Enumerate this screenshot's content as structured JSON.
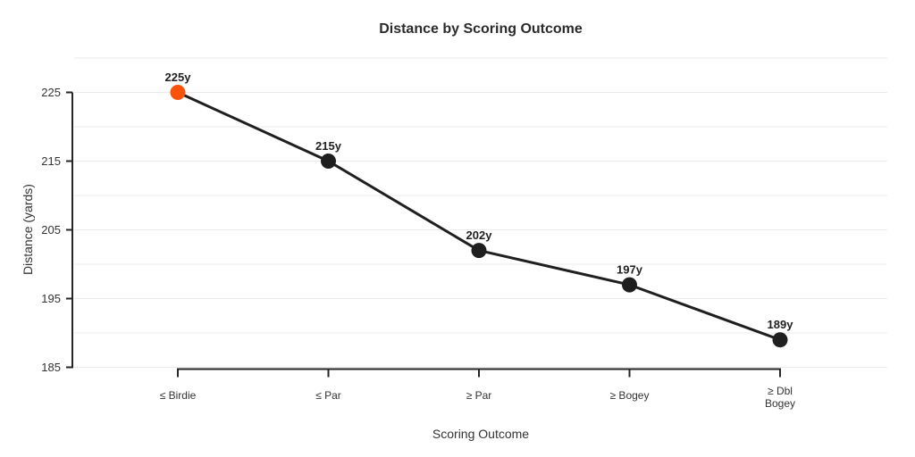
{
  "chart_data": {
    "type": "line",
    "title": "Distance by Scoring Outcome",
    "xlabel": "Scoring Outcome",
    "ylabel": "Distance (yards)",
    "categories": [
      "≤ Birdie",
      "≤ Par",
      "≥ Par",
      "≥ Bogey",
      "≥ Dbl Bogey"
    ],
    "category_display": [
      [
        "≤ Birdie"
      ],
      [
        "≤ Par"
      ],
      [
        "≥ Par"
      ],
      [
        "≥ Bogey"
      ],
      [
        "≥ Dbl",
        "Bogey"
      ]
    ],
    "values": [
      225,
      215,
      202,
      197,
      189
    ],
    "point_labels": [
      "225y",
      "215y",
      "202y",
      "197y",
      "189y"
    ],
    "highlight_index": 0,
    "ylim": [
      185,
      230
    ],
    "yticks": [
      225,
      215,
      205,
      195,
      185
    ],
    "ygrid_step": 5,
    "grid": "horizontal",
    "legend": "none",
    "colors": {
      "highlight": "#f9520b",
      "series": "#1f1f1f",
      "grid": "#ebebeb",
      "axis": "#262626",
      "tick_text": "#333333",
      "title_text": "#2b2b2b"
    }
  }
}
